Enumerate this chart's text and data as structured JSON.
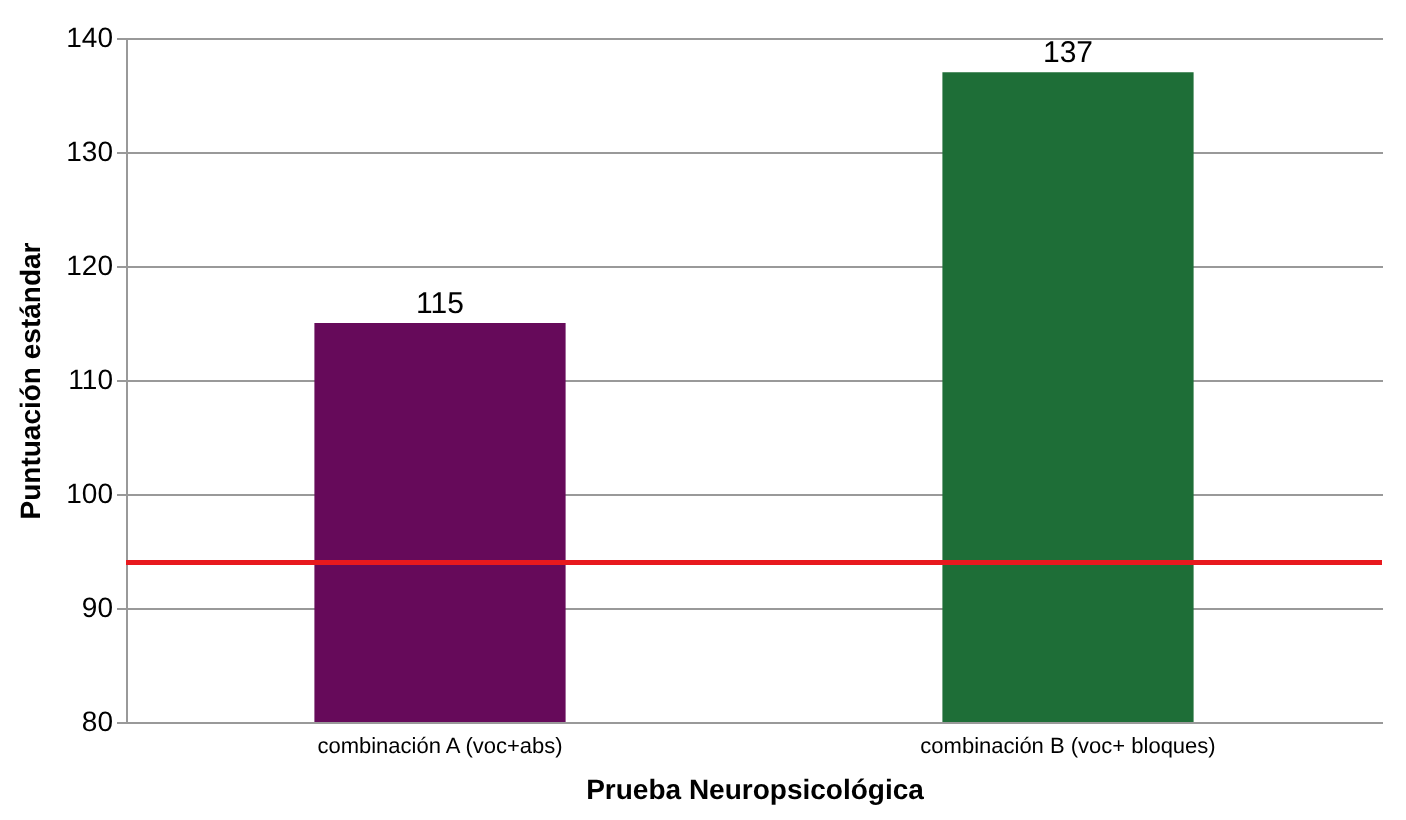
{
  "chart_data": {
    "type": "bar",
    "xlabel": "Prueba Neuropsicológica",
    "ylabel": "Puntuación estándar",
    "categories": [
      "combinación A (voc+abs)",
      "combinación B (voc+ bloques)"
    ],
    "values": [
      115,
      137
    ],
    "colors": [
      "#660a5a",
      "#1e6e37"
    ],
    "ylim": [
      80,
      140
    ],
    "yticks": [
      80,
      90,
      100,
      110,
      120,
      130,
      140
    ],
    "grid": "y",
    "data_labels": true,
    "ref_lines": [
      {
        "axis": "y",
        "value": 94,
        "color": "#e8191e"
      }
    ]
  }
}
